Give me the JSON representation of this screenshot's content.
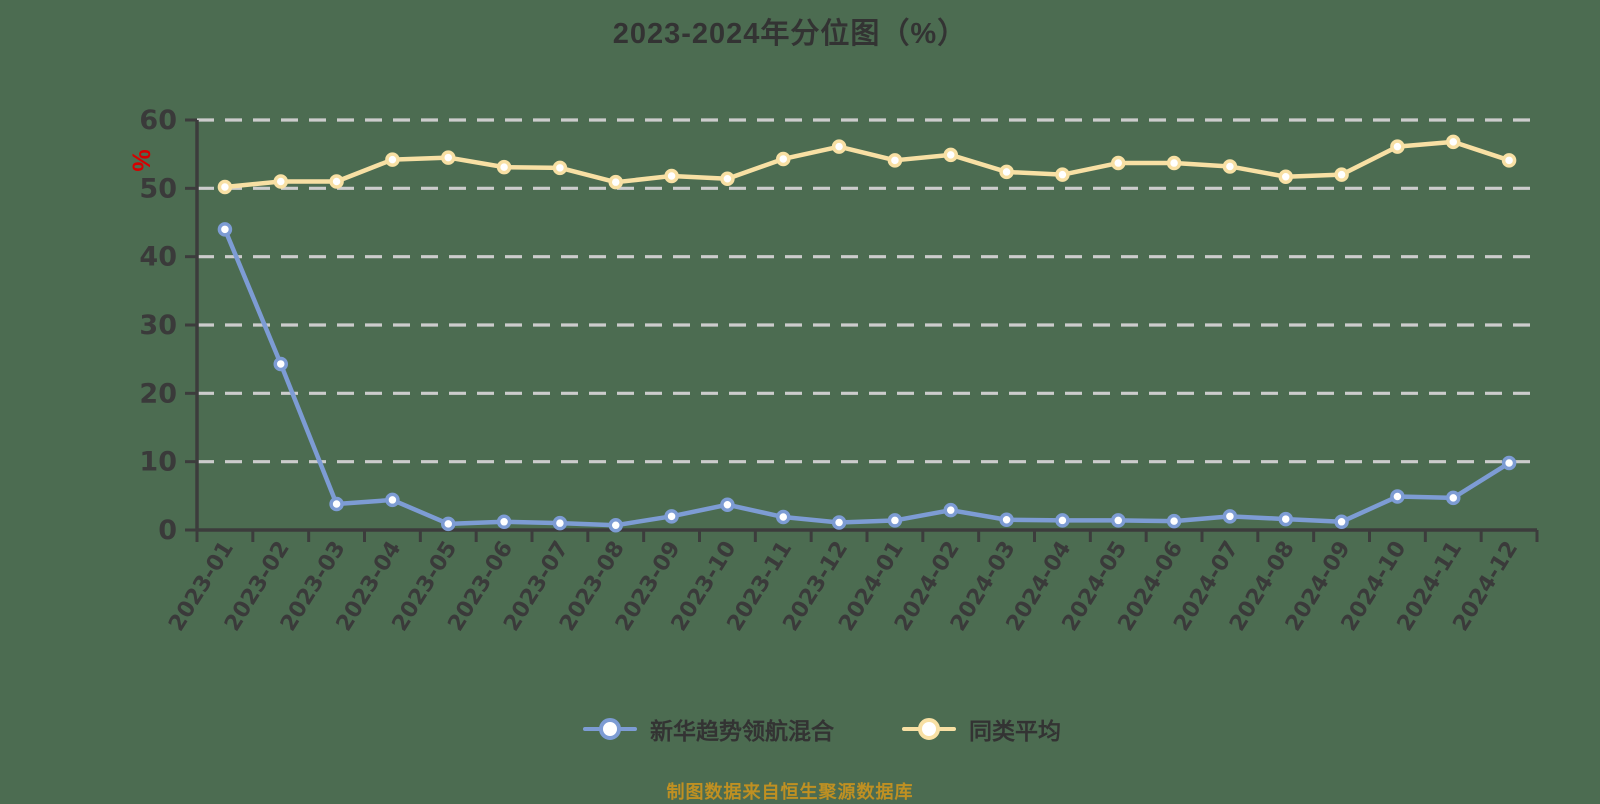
{
  "chart": {
    "title": "2023-2024年分位图（%）",
    "y_unit": "%",
    "footer_note": "制图数据来自恒生聚源数据库"
  },
  "chart_data": {
    "type": "line",
    "title": "2023-2024年分位图（%）",
    "xlabel": "",
    "ylabel": "%",
    "ylim": [
      0,
      60
    ],
    "yticks": [
      0,
      10,
      20,
      30,
      40,
      50,
      60
    ],
    "grid": "horizontal-dashed",
    "legend_position": "bottom-center",
    "categories": [
      "2023-01",
      "2023-02",
      "2023-03",
      "2023-04",
      "2023-05",
      "2023-06",
      "2023-07",
      "2023-08",
      "2023-09",
      "2023-10",
      "2023-11",
      "2023-12",
      "2024-01",
      "2024-02",
      "2024-03",
      "2024-04",
      "2024-05",
      "2024-06",
      "2024-07",
      "2024-08",
      "2024-09",
      "2024-10",
      "2024-11",
      "2024-12"
    ],
    "series": [
      {
        "name": "新华趋势领航混合",
        "color": "#7D9CD4",
        "values": [
          44.0,
          24.3,
          3.8,
          4.4,
          0.9,
          1.2,
          1.0,
          0.7,
          2.0,
          3.7,
          1.9,
          1.1,
          1.4,
          2.9,
          1.5,
          1.4,
          1.4,
          1.3,
          2.0,
          1.6,
          1.2,
          4.9,
          4.7,
          9.8
        ]
      },
      {
        "name": "同类平均",
        "color": "#F8E0A4",
        "values": [
          50.2,
          51.0,
          51.0,
          54.2,
          54.5,
          53.1,
          53.0,
          50.9,
          51.8,
          51.4,
          54.3,
          56.1,
          54.1,
          54.9,
          52.4,
          52.0,
          53.7,
          53.7,
          53.2,
          51.7,
          52.0,
          56.1,
          56.8,
          54.1
        ]
      }
    ],
    "style": {
      "background": "#4C6C51",
      "gridline_color": "#CCCCCC",
      "axis_color": "#3C3C3C",
      "tick_label_color": "#3A3A3A",
      "unit_label_color": "#D60000",
      "footer_color": "#BF9022",
      "marker_fill": "#FFFFFF"
    }
  }
}
